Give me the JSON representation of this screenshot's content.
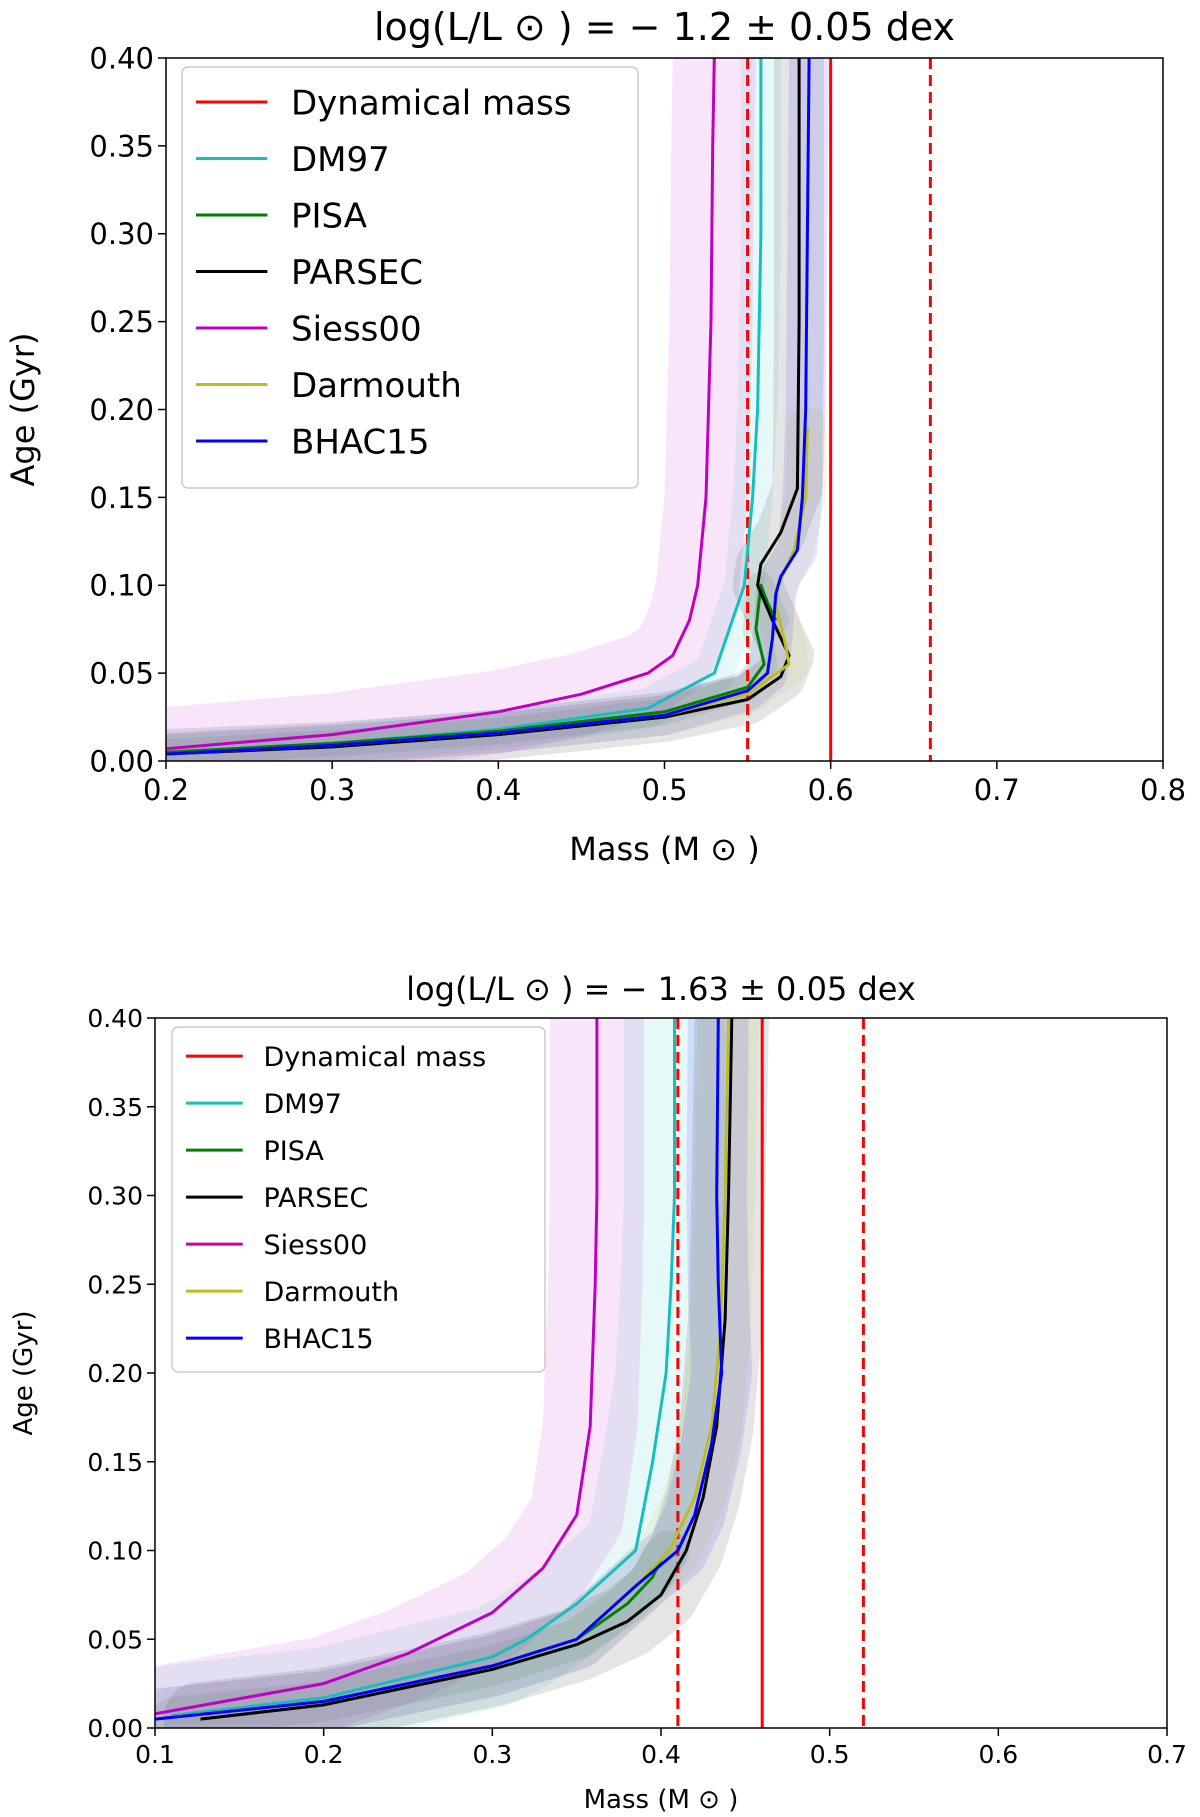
{
  "chart_data": [
    {
      "type": "line",
      "title": "log(L/L ⊙ ) = − 1.2 ± 0.05 dex",
      "xlabel": "Mass (M ⊙ )",
      "ylabel": "Age (Gyr)",
      "xlim": [
        0.2,
        0.8
      ],
      "ylim": [
        0.0,
        0.4
      ],
      "xticks": [
        "0.2",
        "0.3",
        "0.4",
        "0.5",
        "0.6",
        "0.7",
        "0.8"
      ],
      "yticks": [
        "0.00",
        "0.05",
        "0.10",
        "0.15",
        "0.20",
        "0.25",
        "0.30",
        "0.35",
        "0.40"
      ],
      "legend_position": "top-left",
      "dynamical_mass": {
        "name": "Dynamical mass",
        "color": "#ff0000",
        "value": 0.6,
        "lower": 0.55,
        "upper": 0.66
      },
      "series": [
        {
          "name": "DM97",
          "color": "#17bebe",
          "band_width": 0.012,
          "x": [
            0.2,
            0.3,
            0.4,
            0.49,
            0.53,
            0.548,
            0.553,
            0.556,
            0.558,
            0.558
          ],
          "y": [
            0.005,
            0.01,
            0.018,
            0.03,
            0.05,
            0.1,
            0.15,
            0.2,
            0.3,
            0.4
          ]
        },
        {
          "name": "PISA",
          "color": "#008000",
          "band_width": 0.008,
          "x": [
            0.2,
            0.3,
            0.4,
            0.5,
            0.55,
            0.56,
            0.555,
            0.558,
            0.562,
            0.567
          ],
          "y": [
            0.005,
            0.01,
            0.017,
            0.028,
            0.042,
            0.055,
            0.075,
            0.1,
            0.09,
            0.08
          ]
        },
        {
          "name": "PARSEC",
          "color": "#000000",
          "band_width": 0.015,
          "x": [
            0.2,
            0.3,
            0.4,
            0.5,
            0.55,
            0.57,
            0.575,
            0.565,
            0.556,
            0.558,
            0.57,
            0.58,
            0.581,
            0.581
          ],
          "y": [
            0.004,
            0.008,
            0.015,
            0.025,
            0.035,
            0.048,
            0.06,
            0.08,
            0.1,
            0.112,
            0.13,
            0.155,
            0.25,
            0.4
          ]
        },
        {
          "name": "Siess00",
          "color": "#c000c0",
          "band_width": 0.025,
          "x": [
            0.2,
            0.3,
            0.4,
            0.45,
            0.49,
            0.505,
            0.515,
            0.52,
            0.525,
            0.528,
            0.529,
            0.53
          ],
          "y": [
            0.007,
            0.015,
            0.028,
            0.038,
            0.05,
            0.06,
            0.08,
            0.1,
            0.15,
            0.25,
            0.35,
            0.4
          ]
        },
        {
          "name": "Darmouth",
          "color": "#bcbd22",
          "band_width": 0.012,
          "x": [
            0.2,
            0.3,
            0.4,
            0.5,
            0.55,
            0.575,
            0.572,
            0.567,
            0.568,
            0.578,
            0.585,
            0.586
          ],
          "y": [
            0.004,
            0.009,
            0.016,
            0.026,
            0.038,
            0.055,
            0.07,
            0.088,
            0.1,
            0.12,
            0.15,
            0.19
          ]
        },
        {
          "name": "BHAC15",
          "color": "#0000ff",
          "band_width": 0.012,
          "x": [
            0.2,
            0.3,
            0.4,
            0.5,
            0.55,
            0.562,
            0.565,
            0.567,
            0.57,
            0.58,
            0.583,
            0.585,
            0.586,
            0.587
          ],
          "y": [
            0.004,
            0.009,
            0.016,
            0.026,
            0.04,
            0.05,
            0.07,
            0.095,
            0.105,
            0.12,
            0.15,
            0.2,
            0.3,
            0.4
          ]
        }
      ]
    },
    {
      "type": "line",
      "title": "log(L/L ⊙ ) = − 1.63 ± 0.05 dex",
      "xlabel": "Mass (M ⊙ )",
      "ylabel": "Age (Gyr)",
      "xlim": [
        0.1,
        0.7
      ],
      "ylim": [
        0.0,
        0.4
      ],
      "xticks": [
        "0.1",
        "0.2",
        "0.3",
        "0.4",
        "0.5",
        "0.6",
        "0.7"
      ],
      "yticks": [
        "0.00",
        "0.05",
        "0.10",
        "0.15",
        "0.20",
        "0.25",
        "0.30",
        "0.35",
        "0.40"
      ],
      "legend_position": "top-left",
      "dynamical_mass": {
        "name": "Dynamical mass",
        "color": "#ff0000",
        "value": 0.46,
        "lower": 0.41,
        "upper": 0.52
      },
      "series": [
        {
          "name": "DM97",
          "color": "#17bebe",
          "band_width": 0.03,
          "x": [
            0.11,
            0.2,
            0.3,
            0.32,
            0.35,
            0.385,
            0.395,
            0.403,
            0.406,
            0.408,
            0.408
          ],
          "y": [
            0.007,
            0.017,
            0.04,
            0.05,
            0.07,
            0.1,
            0.15,
            0.2,
            0.25,
            0.3,
            0.4
          ]
        },
        {
          "name": "PISA",
          "color": "#008000",
          "band_width": 0.012,
          "x": [
            0.11,
            0.2,
            0.3,
            0.35,
            0.38,
            0.395,
            0.4,
            0.405
          ],
          "y": [
            0.006,
            0.015,
            0.035,
            0.05,
            0.07,
            0.085,
            0.095,
            0.1
          ]
        },
        {
          "name": "PARSEC",
          "color": "#000000",
          "band_width": 0.022,
          "x": [
            0.127,
            0.2,
            0.3,
            0.35,
            0.38,
            0.4,
            0.415,
            0.425,
            0.433,
            0.438,
            0.44,
            0.442
          ],
          "y": [
            0.005,
            0.013,
            0.033,
            0.047,
            0.06,
            0.075,
            0.1,
            0.13,
            0.17,
            0.23,
            0.3,
            0.4
          ]
        },
        {
          "name": "Siess00",
          "color": "#c000c0",
          "band_width": 0.028,
          "x": [
            0.1,
            0.2,
            0.25,
            0.3,
            0.33,
            0.35,
            0.358,
            0.361,
            0.362,
            0.362
          ],
          "y": [
            0.008,
            0.025,
            0.042,
            0.065,
            0.09,
            0.12,
            0.17,
            0.25,
            0.3,
            0.4
          ]
        },
        {
          "name": "Darmouth",
          "color": "#bcbd22",
          "band_width": 0.018,
          "x": [
            0.11,
            0.2,
            0.3,
            0.35,
            0.385,
            0.405,
            0.42,
            0.43,
            0.435,
            0.438,
            0.44
          ],
          "y": [
            0.006,
            0.015,
            0.035,
            0.05,
            0.08,
            0.1,
            0.13,
            0.17,
            0.22,
            0.3,
            0.4
          ]
        },
        {
          "name": "BHAC15",
          "color": "#0000ff",
          "band_width": 0.018,
          "x": [
            0.1,
            0.2,
            0.3,
            0.35,
            0.385,
            0.41,
            0.42,
            0.43,
            0.436,
            0.434,
            0.433,
            0.434
          ],
          "y": [
            0.005,
            0.015,
            0.035,
            0.05,
            0.08,
            0.1,
            0.12,
            0.16,
            0.2,
            0.25,
            0.3,
            0.4
          ]
        }
      ]
    }
  ]
}
